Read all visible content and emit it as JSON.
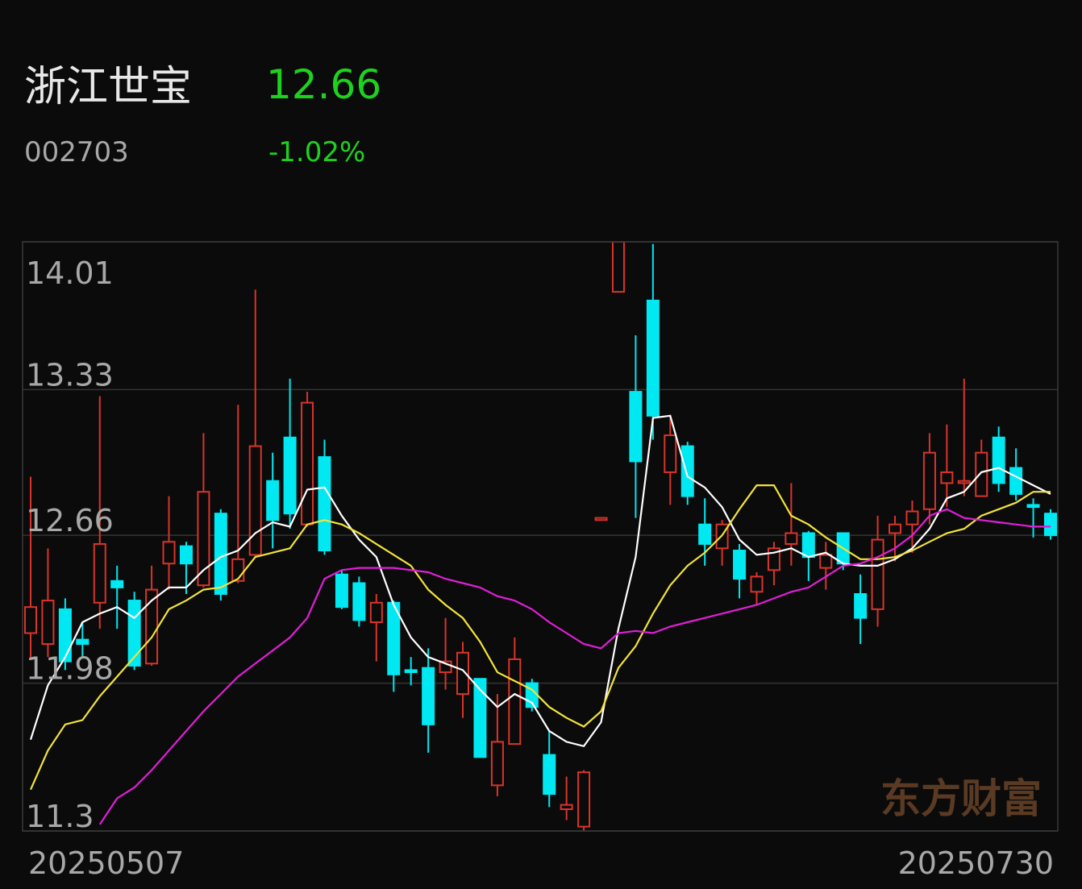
{
  "stock": {
    "name": "浙江世宝",
    "price": "12.66",
    "code": "002703",
    "change": "-1.02%"
  },
  "chart_data": {
    "type": "candlestick",
    "categories": [
      "20250507",
      null,
      null,
      null,
      null,
      null,
      null,
      null,
      null,
      null,
      null,
      null,
      null,
      null,
      null,
      null,
      null,
      null,
      null,
      null,
      null,
      null,
      null,
      null,
      null,
      null,
      null,
      null,
      null,
      null,
      null,
      null,
      null,
      null,
      null,
      null,
      null,
      null,
      null,
      null,
      null,
      null,
      null,
      null,
      null,
      null,
      null,
      null,
      null,
      null,
      null,
      null,
      null,
      null,
      null,
      null,
      null,
      null,
      null,
      "20250730"
    ],
    "open": [
      12.21,
      12.16,
      12.32,
      12.18,
      12.35,
      12.45,
      12.36,
      12.07,
      12.53,
      12.61,
      12.43,
      12.76,
      12.45,
      12.57,
      12.91,
      13.11,
      12.71,
      13.02,
      12.48,
      12.44,
      12.26,
      12.35,
      12.04,
      12.05,
      12.03,
      11.93,
      12.0,
      11.51,
      11.7,
      11.98,
      11.65,
      11.4,
      11.32,
      12.73,
      13.78,
      13.32,
      13.74,
      12.95,
      13.07,
      12.71,
      12.6,
      12.59,
      12.4,
      12.5,
      12.62,
      12.67,
      12.51,
      12.67,
      12.39,
      12.32,
      12.67,
      12.71,
      12.78,
      12.9,
      12.9,
      12.84,
      13.11,
      12.97,
      12.8,
      12.76
    ],
    "high": [
      12.93,
      12.6,
      12.37,
      12.26,
      13.3,
      12.52,
      12.4,
      12.52,
      12.84,
      12.63,
      13.13,
      12.78,
      13.26,
      13.79,
      13.04,
      13.38,
      13.32,
      13.1,
      12.5,
      12.47,
      12.39,
      12.36,
      12.1,
      12.14,
      12.28,
      12.17,
      12.0,
      11.93,
      12.19,
      12.0,
      11.76,
      11.55,
      11.58,
      12.74,
      14.01,
      13.58,
      14.0,
      13.21,
      13.09,
      12.83,
      12.73,
      12.62,
      12.49,
      12.63,
      12.9,
      12.68,
      12.63,
      12.67,
      12.48,
      12.75,
      12.75,
      12.82,
      13.13,
      13.17,
      13.38,
      13.1,
      13.16,
      13.06,
      12.83,
      12.78
    ],
    "low": [
      12.1,
      12.1,
      12.04,
      12.1,
      12.23,
      12.23,
      12.04,
      12.06,
      12.41,
      12.39,
      12.42,
      12.36,
      12.44,
      12.56,
      12.6,
      12.69,
      12.7,
      12.57,
      12.32,
      12.24,
      12.08,
      11.94,
      11.97,
      11.66,
      11.95,
      11.82,
      11.64,
      11.46,
      11.7,
      11.85,
      11.41,
      11.35,
      11.3,
      12.73,
      13.78,
      12.74,
      13.1,
      12.8,
      12.8,
      12.52,
      12.52,
      12.37,
      12.34,
      12.43,
      12.52,
      12.45,
      12.41,
      12.5,
      12.16,
      12.24,
      12.54,
      12.58,
      12.71,
      12.79,
      12.84,
      12.84,
      12.86,
      12.82,
      12.65,
      12.64
    ],
    "close": [
      12.33,
      12.36,
      12.08,
      12.16,
      12.62,
      12.42,
      12.06,
      12.41,
      12.63,
      12.53,
      12.86,
      12.39,
      12.55,
      13.07,
      12.73,
      12.76,
      13.27,
      12.59,
      12.33,
      12.27,
      12.35,
      12.02,
      12.03,
      11.79,
      12.08,
      12.12,
      11.64,
      11.71,
      12.09,
      11.87,
      11.47,
      11.42,
      11.57,
      12.74,
      14.01,
      13.0,
      13.21,
      13.12,
      12.84,
      12.62,
      12.71,
      12.46,
      12.47,
      12.6,
      12.67,
      12.56,
      12.57,
      12.53,
      12.28,
      12.64,
      12.71,
      12.77,
      13.04,
      12.95,
      12.91,
      13.04,
      12.9,
      12.85,
      12.79,
      12.66
    ],
    "up_color": "#d9342b",
    "down_color": "#00e8f2",
    "lines": [
      {
        "color": "#ffffff",
        "values": [
          11.72,
          11.97,
          12.1,
          12.26,
          12.3,
          12.33,
          12.28,
          12.36,
          12.42,
          12.42,
          12.5,
          12.56,
          12.59,
          12.67,
          12.72,
          12.7,
          12.87,
          12.88,
          12.75,
          12.64,
          12.56,
          12.34,
          12.19,
          12.1,
          12.07,
          12.04,
          11.95,
          11.87,
          11.93,
          11.89,
          11.76,
          11.71,
          11.69,
          11.8,
          12.23,
          12.56,
          13.2,
          13.21,
          12.93,
          12.88,
          12.79,
          12.64,
          12.57,
          12.58,
          12.6,
          12.56,
          12.58,
          12.53,
          12.52,
          12.52,
          12.55,
          12.6,
          12.69,
          12.83,
          12.86,
          12.95,
          12.97,
          12.93,
          12.89,
          12.85
        ]
      },
      {
        "color": "#f2e33a",
        "values": [
          11.49,
          11.67,
          11.79,
          11.81,
          11.92,
          12.01,
          12.1,
          12.19,
          12.32,
          12.36,
          12.41,
          12.42,
          12.46,
          12.56,
          12.58,
          12.6,
          12.71,
          12.73,
          12.71,
          12.67,
          12.62,
          12.57,
          12.52,
          12.41,
          12.34,
          12.28,
          12.17,
          12.03,
          11.99,
          11.95,
          11.87,
          11.82,
          11.78,
          11.85,
          12.05,
          12.15,
          12.3,
          12.43,
          12.52,
          12.58,
          12.66,
          12.78,
          12.89,
          12.89,
          12.75,
          12.71,
          12.65,
          12.6,
          12.55,
          12.55,
          12.56,
          12.59,
          12.63,
          12.67,
          12.69,
          12.75,
          12.78,
          12.81,
          12.86,
          12.86
        ]
      },
      {
        "color": "#e01fd8",
        "values": [
          null,
          null,
          null,
          null,
          11.33,
          11.45,
          11.5,
          11.58,
          11.67,
          11.76,
          11.85,
          11.93,
          12.01,
          12.07,
          12.13,
          12.19,
          12.28,
          12.46,
          12.5,
          12.51,
          12.51,
          12.51,
          12.5,
          12.49,
          12.46,
          12.44,
          12.42,
          12.38,
          12.36,
          12.32,
          12.26,
          12.21,
          12.16,
          12.14,
          12.21,
          12.22,
          12.21,
          12.24,
          12.26,
          12.28,
          12.3,
          12.32,
          12.34,
          12.37,
          12.4,
          12.42,
          12.47,
          12.52,
          12.53,
          12.56,
          12.6,
          12.66,
          12.75,
          12.78,
          12.74,
          12.73,
          12.72,
          12.71,
          12.7,
          12.7
        ]
      }
    ],
    "ylim": [
      11.3,
      14.01
    ],
    "yticks": [
      14.01,
      13.33,
      12.66,
      11.98,
      11.3
    ],
    "grid": true,
    "watermark": "东方财富"
  }
}
